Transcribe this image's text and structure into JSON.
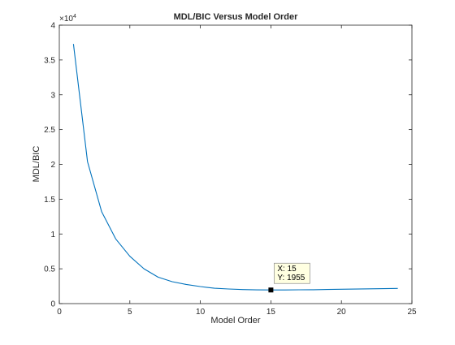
{
  "chart_data": {
    "type": "line",
    "title": "MDL/BIC Versus Model Order",
    "xlabel": "Model Order",
    "ylabel": "MDL/BIC",
    "xlim": [
      0,
      25
    ],
    "ylim": [
      0,
      40000
    ],
    "x_ticks": [
      0,
      5,
      10,
      15,
      20,
      25
    ],
    "x_tick_labels": [
      "0",
      "5",
      "10",
      "15",
      "20",
      "25"
    ],
    "y_ticks": [
      0,
      5000,
      10000,
      15000,
      20000,
      25000,
      30000,
      35000,
      40000
    ],
    "y_tick_labels": [
      "0",
      "0.5",
      "1",
      "1.5",
      "2",
      "2.5",
      "3",
      "3.5",
      "4"
    ],
    "y_exponent_base": "×10",
    "y_exponent_power": "4",
    "grid": false,
    "series": [
      {
        "color": "#0072bd",
        "x": [
          1,
          2,
          3,
          4,
          5,
          6,
          7,
          8,
          9,
          10,
          11,
          12,
          13,
          14,
          15,
          16,
          17,
          18,
          19,
          20,
          21,
          22,
          23,
          24
        ],
        "y": [
          37300,
          20400,
          13200,
          9300,
          6800,
          5000,
          3800,
          3150,
          2750,
          2450,
          2200,
          2100,
          2020,
          1975,
          1955,
          1960,
          1980,
          2000,
          2030,
          2060,
          2090,
          2120,
          2150,
          2180
        ]
      }
    ],
    "datatip": {
      "x": 15,
      "y": 1955,
      "x_text": "X: 15",
      "y_text": "Y: 1955"
    }
  }
}
